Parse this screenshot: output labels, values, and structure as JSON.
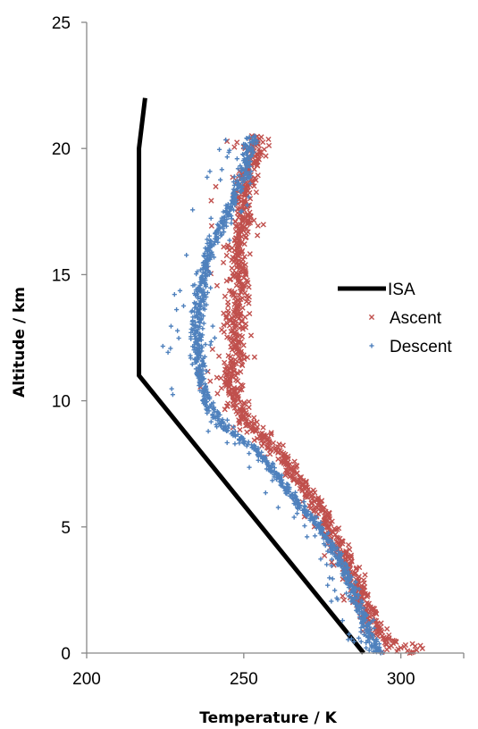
{
  "chart_data": {
    "type": "scatter",
    "xlabel": "Temperature / K",
    "ylabel": "Altitude / km",
    "xlim": [
      200,
      320
    ],
    "ylim": [
      0,
      25
    ],
    "x_ticks": [
      "200",
      "250",
      "300"
    ],
    "y_ticks": [
      "0",
      "5",
      "10",
      "15",
      "20",
      "25"
    ],
    "grid": false,
    "legend_position": "right",
    "series": [
      {
        "name": "ISA",
        "kind": "line",
        "color": "#000000",
        "points": [
          [
            288.15,
            0
          ],
          [
            216.65,
            11
          ],
          [
            216.65,
            20
          ],
          [
            218.6,
            22
          ]
        ]
      },
      {
        "name": "Ascent",
        "kind": "scatter",
        "marker": "x",
        "color": "#c0504d",
        "profile": [
          [
            300,
            0
          ],
          [
            292,
            1
          ],
          [
            288,
            2
          ],
          [
            285,
            3
          ],
          [
            281,
            4
          ],
          [
            277,
            5
          ],
          [
            273,
            6
          ],
          [
            267,
            7
          ],
          [
            261,
            8
          ],
          [
            252,
            9
          ],
          [
            247,
            10
          ],
          [
            246,
            11
          ],
          [
            248,
            12
          ],
          [
            247,
            13
          ],
          [
            248,
            14
          ],
          [
            249,
            15
          ],
          [
            248,
            16
          ],
          [
            250,
            17
          ],
          [
            249,
            18
          ],
          [
            251,
            19
          ],
          [
            254,
            20
          ],
          [
            254,
            20.5
          ]
        ]
      },
      {
        "name": "Descent",
        "kind": "scatter",
        "marker": "+",
        "color": "#4f81bd",
        "profile": [
          [
            293,
            0
          ],
          [
            289,
            1
          ],
          [
            286,
            2
          ],
          [
            283,
            3
          ],
          [
            279,
            4
          ],
          [
            274,
            5
          ],
          [
            267,
            6
          ],
          [
            261,
            7
          ],
          [
            254,
            8
          ],
          [
            244,
            9
          ],
          [
            238,
            10
          ],
          [
            236,
            11
          ],
          [
            235,
            12
          ],
          [
            235,
            13
          ],
          [
            236,
            14
          ],
          [
            237,
            15
          ],
          [
            239,
            16
          ],
          [
            243,
            17
          ],
          [
            247,
            18
          ],
          [
            250,
            19
          ],
          [
            252,
            20
          ],
          [
            253,
            20.5
          ]
        ]
      }
    ]
  }
}
